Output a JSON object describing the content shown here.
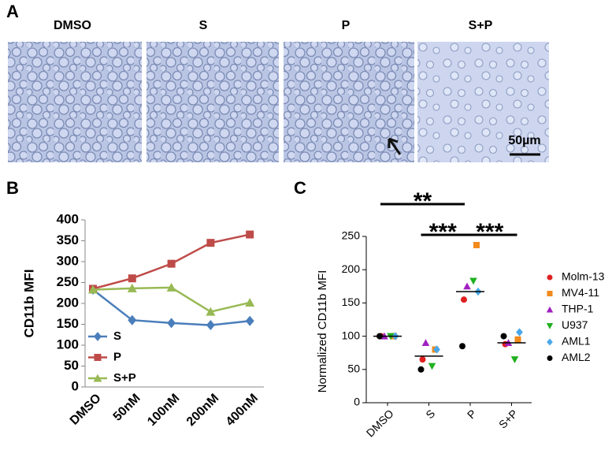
{
  "figure": {
    "panel_labels": [
      "A",
      "B",
      "C"
    ],
    "images": [
      "DMSO",
      "S",
      "P",
      "S+P"
    ],
    "scale_bar": "50µm"
  },
  "chart_data": [
    {
      "type": "line",
      "y_label": "CD11b MFI",
      "categories": [
        "DMSO",
        "50nM",
        "100nM",
        "200nM",
        "400nM"
      ],
      "series": [
        {
          "name": "S",
          "color": "#4a7ebb",
          "marker": "diamond",
          "values": [
            233,
            160,
            153,
            148,
            158
          ]
        },
        {
          "name": "P",
          "color": "#be4b48",
          "marker": "square",
          "values": [
            235,
            260,
            295,
            345,
            365
          ]
        },
        {
          "name": "S+P",
          "color": "#98b954",
          "marker": "triangle",
          "values": [
            233,
            236,
            238,
            180,
            202
          ]
        }
      ],
      "ylim": [
        0,
        400
      ],
      "yticks": [
        0,
        50,
        100,
        150,
        200,
        250,
        300,
        350,
        400
      ],
      "legend": "lower left"
    },
    {
      "type": "dot",
      "y_label": "Normalized CD11b MFI",
      "categories": [
        "DMSO",
        "S",
        "P",
        "S+P"
      ],
      "series": [
        {
          "name": "Molm-13",
          "color": "#e02020",
          "marker": "circle",
          "values": [
            100,
            65,
            155,
            88
          ]
        },
        {
          "name": "MV4-11",
          "color": "#f28a1c",
          "marker": "square",
          "values": [
            100,
            80,
            237,
            95
          ]
        },
        {
          "name": "THP-1",
          "color": "#a020c0",
          "marker": "triangle",
          "values": [
            100,
            90,
            175,
            90
          ]
        },
        {
          "name": "U937",
          "color": "#20b020",
          "marker": "triangle-down",
          "values": [
            100,
            55,
            183,
            65
          ]
        },
        {
          "name": "AML1",
          "color": "#4aa8e8",
          "marker": "diamond",
          "values": [
            100,
            80,
            167,
            106
          ]
        },
        {
          "name": "AML2",
          "color": "#000000",
          "marker": "circle",
          "values": [
            100,
            50,
            85,
            100
          ]
        }
      ],
      "means": [
        100,
        70,
        167,
        90
      ],
      "annotations": [
        "**",
        "***",
        "***"
      ],
      "ylim": [
        0,
        250
      ],
      "yticks": [
        0,
        50,
        100,
        150,
        200,
        250
      ],
      "legend": "right"
    }
  ]
}
